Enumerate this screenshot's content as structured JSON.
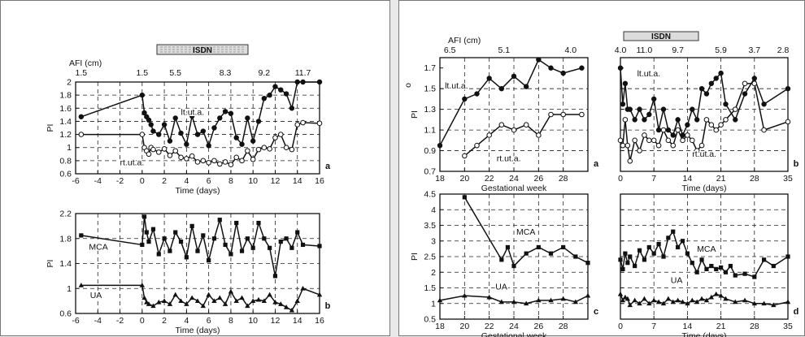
{
  "left": {
    "isdn": "ISDN",
    "afi_label": "AFI (cm)",
    "afi_ticks": [
      {
        "t": -5.5,
        "label": "1.5"
      },
      {
        "t": 0,
        "label": "1.5"
      },
      {
        "t": 3,
        "label": "5.5"
      },
      {
        "t": 7.5,
        "label": "8.3"
      },
      {
        "t": 11,
        "label": "9.2"
      },
      {
        "t": 14.5,
        "label": "11.7"
      }
    ]
  },
  "right": {
    "isdn": "ISDN",
    "afi_label": "AFI (cm)",
    "afi_ticks_left": [
      {
        "t": 18.8,
        "label": "6.5"
      },
      {
        "t": 23.2,
        "label": "5.1"
      },
      {
        "t": 28.6,
        "label": "4.0"
      }
    ],
    "afi_ticks_right": [
      {
        "t": 0,
        "label": "4.0"
      },
      {
        "t": 5,
        "label": "11.0"
      },
      {
        "t": 12,
        "label": "9.7"
      },
      {
        "t": 21,
        "label": "5.9"
      },
      {
        "t": 28,
        "label": "3.7"
      },
      {
        "t": 34,
        "label": "2.8"
      }
    ],
    "extra_axis_label": "o"
  },
  "chart_data": [
    {
      "id": "left-a",
      "type": "line",
      "panel_letter": "a",
      "xlabel": "Time (days)",
      "ylabel": "PI",
      "xlim": [
        -6,
        16
      ],
      "ylim": [
        0.6,
        2.0
      ],
      "xticks": [
        -6,
        -4,
        -2,
        0,
        2,
        4,
        6,
        8,
        10,
        12,
        14,
        16
      ],
      "yticks": [
        0.6,
        0.8,
        1,
        1.2,
        1.4,
        1.6,
        1.8,
        2
      ],
      "ytick_labels": [
        "0.6",
        "0.8",
        "1",
        "1.2",
        "1.4",
        "1.6",
        "1.8",
        "2"
      ],
      "grid": true,
      "annotations": [
        {
          "text": "lt.ut.a.",
          "x": 3.5,
          "y": 1.5
        },
        {
          "text": "rt.ut.a.",
          "x": -2,
          "y": 0.73
        }
      ],
      "series": [
        {
          "marker": "filled",
          "x": [
            -5.5,
            0,
            0.2,
            0.4,
            0.6,
            0.8,
            1,
            1.5,
            2,
            2.5,
            3,
            3.5,
            4,
            4.5,
            5,
            5.5,
            6,
            6.5,
            7,
            7.5,
            8,
            8.5,
            9,
            9.5,
            10,
            10.5,
            11,
            11.5,
            12,
            12.5,
            13,
            13.5,
            14,
            14.5,
            16
          ],
          "y": [
            1.47,
            1.8,
            1.53,
            1.47,
            1.42,
            1.35,
            1.25,
            1.2,
            1.35,
            1.1,
            1.45,
            1.22,
            1.05,
            1.48,
            1.2,
            1.25,
            1.03,
            1.3,
            1.45,
            1.55,
            1.52,
            1.15,
            1.05,
            1.45,
            1.1,
            1.4,
            1.75,
            1.8,
            1.93,
            1.88,
            1.82,
            1.6,
            2.0,
            2.0,
            2.0
          ]
        },
        {
          "marker": "open",
          "x": [
            -5.5,
            0,
            0.2,
            0.4,
            0.6,
            0.8,
            1,
            1.5,
            2,
            2.5,
            3,
            3.5,
            4,
            4.5,
            5,
            5.5,
            6,
            6.5,
            7,
            7.5,
            8,
            8.5,
            9,
            9.5,
            10,
            10.5,
            11,
            11.5,
            12,
            12.5,
            13,
            13.5,
            14,
            14.5,
            16
          ],
          "y": [
            1.2,
            1.2,
            1.0,
            0.95,
            0.9,
            1.0,
            0.97,
            0.93,
            0.98,
            0.88,
            0.95,
            0.85,
            0.83,
            0.87,
            0.78,
            0.8,
            0.77,
            0.8,
            0.75,
            0.78,
            0.74,
            0.85,
            0.8,
            0.95,
            0.82,
            0.97,
            1.0,
            0.98,
            1.15,
            1.2,
            1.0,
            0.97,
            1.35,
            1.38,
            1.37
          ]
        }
      ]
    },
    {
      "id": "left-b",
      "type": "line",
      "panel_letter": "b",
      "xlabel": "Time (days)",
      "ylabel": "PI",
      "xlim": [
        -6,
        16
      ],
      "ylim": [
        0.6,
        2.2
      ],
      "xticks": [
        -6,
        -4,
        -2,
        0,
        2,
        4,
        6,
        8,
        10,
        12,
        14,
        16
      ],
      "yticks": [
        0.6,
        1,
        1.4,
        1.8,
        2.2
      ],
      "ytick_labels": [
        "0.6",
        "1",
        "1.4",
        "1.8",
        "2.2"
      ],
      "grid": true,
      "annotations": [
        {
          "text": "MCA",
          "x": -4.8,
          "y": 1.62
        },
        {
          "text": "UA",
          "x": -4.7,
          "y": 0.85
        }
      ],
      "series": [
        {
          "name": "MCA",
          "marker": "square",
          "x": [
            -5.5,
            0,
            0.2,
            0.4,
            0.6,
            1,
            1.5,
            2,
            2.5,
            3,
            3.5,
            4,
            4.5,
            5,
            5.5,
            6,
            6.5,
            7,
            7.5,
            8,
            8.5,
            9,
            9.5,
            10,
            10.5,
            11,
            11.5,
            12,
            12.5,
            13,
            13.5,
            14,
            14.5,
            16
          ],
          "y": [
            1.85,
            1.7,
            2.15,
            1.9,
            1.75,
            1.95,
            1.55,
            1.8,
            1.6,
            1.9,
            1.75,
            1.5,
            2.0,
            1.6,
            1.85,
            1.45,
            1.8,
            2.1,
            1.7,
            1.55,
            2.05,
            1.6,
            1.8,
            1.65,
            2.05,
            1.8,
            1.65,
            1.2,
            1.75,
            1.8,
            1.65,
            1.9,
            1.7,
            1.68
          ]
        },
        {
          "name": "UA",
          "marker": "triangle",
          "x": [
            -5.5,
            0,
            0.2,
            0.4,
            0.6,
            1,
            1.5,
            2,
            2.5,
            3,
            3.5,
            4,
            4.5,
            5,
            5.5,
            6,
            6.5,
            7,
            7.5,
            8,
            8.5,
            9,
            9.5,
            10,
            10.5,
            11,
            11.5,
            12,
            12.5,
            13,
            13.5,
            14,
            14.5,
            16
          ],
          "y": [
            1.05,
            1.05,
            0.85,
            0.78,
            0.75,
            0.72,
            0.78,
            0.8,
            0.75,
            0.9,
            0.8,
            0.75,
            0.85,
            0.8,
            0.72,
            0.9,
            0.8,
            0.85,
            0.75,
            0.95,
            0.8,
            0.85,
            0.72,
            0.8,
            0.82,
            0.8,
            0.9,
            0.78,
            0.75,
            0.7,
            0.65,
            0.8,
            1.0,
            0.9
          ]
        }
      ]
    },
    {
      "id": "right-a",
      "type": "line",
      "panel_letter": "a",
      "xlabel": "Gestational week",
      "ylabel": "PI",
      "xlim": [
        18,
        30
      ],
      "ylim": [
        0.7,
        1.8
      ],
      "xticks": [
        18,
        20,
        22,
        24,
        26,
        28
      ],
      "xtick_labels": [
        "18",
        "20",
        "22",
        "24",
        "26",
        "28"
      ],
      "yticks": [
        0.7,
        0.9,
        1.1,
        1.3,
        1.5,
        1.7
      ],
      "ytick_labels": [
        "0.7",
        "0.9",
        "1.1",
        "1.3",
        "1.5",
        "1.7"
      ],
      "grid": true,
      "annotations": [
        {
          "text": "lt.ut.a.",
          "x": 18.4,
          "y": 1.5
        },
        {
          "text": "rt.ut.a.",
          "x": 22.6,
          "y": 0.8
        }
      ],
      "series": [
        {
          "name": "lt.ut.a.",
          "marker": "filled",
          "x": [
            18,
            20,
            21,
            22,
            23,
            24,
            25,
            26,
            27,
            28,
            29.5
          ],
          "y": [
            0.95,
            1.4,
            1.45,
            1.6,
            1.5,
            1.62,
            1.52,
            1.78,
            1.7,
            1.65,
            1.7
          ]
        },
        {
          "name": "rt.ut.a.",
          "marker": "open",
          "x": [
            20,
            21,
            22,
            23,
            24,
            25,
            26,
            27,
            28,
            29.5
          ],
          "y": [
            0.85,
            0.95,
            1.05,
            1.15,
            1.1,
            1.15,
            1.05,
            1.25,
            1.25,
            1.25
          ]
        }
      ]
    },
    {
      "id": "right-b",
      "type": "line",
      "panel_letter": "b",
      "xlabel": "Time (days)",
      "ylabel": "",
      "xlim": [
        0,
        35
      ],
      "ylim": [
        0.7,
        1.8
      ],
      "xticks": [
        0,
        7,
        14,
        21,
        28,
        35
      ],
      "xtick_labels": [
        "0",
        "7",
        "14",
        "21",
        "28",
        "35"
      ],
      "yticks": [
        0.7,
        0.9,
        1.1,
        1.3,
        1.5,
        1.7
      ],
      "grid": true,
      "annotations": [
        {
          "text": "lt.ut.a.",
          "x": 3.5,
          "y": 1.62
        },
        {
          "text": "rt.ut.a.",
          "x": 15,
          "y": 0.84
        }
      ],
      "series": [
        {
          "name": "lt.ut.a.",
          "marker": "filled",
          "x": [
            0,
            0.5,
            1,
            1.5,
            2,
            3,
            4,
            5,
            6,
            7,
            8,
            9,
            10,
            11,
            12,
            13,
            14,
            15,
            16,
            17,
            18,
            19,
            20,
            21,
            22,
            24,
            26,
            28,
            30,
            35
          ],
          "y": [
            1.7,
            1.35,
            1.55,
            1.3,
            1.3,
            1.2,
            1.3,
            1.2,
            1.25,
            1.4,
            1.1,
            1.3,
            1.1,
            1.05,
            1.2,
            1.05,
            1.15,
            1.3,
            1.2,
            1.5,
            1.45,
            1.55,
            1.6,
            1.65,
            1.35,
            1.2,
            1.45,
            1.6,
            1.35,
            1.5
          ]
        },
        {
          "name": "rt.ut.a.",
          "marker": "open",
          "x": [
            0,
            0.5,
            1,
            1.5,
            2,
            3,
            4,
            5,
            6,
            7,
            8,
            9,
            10,
            11,
            12,
            13,
            14,
            15,
            16,
            17,
            18,
            19,
            20,
            21,
            22,
            24,
            26,
            28,
            30,
            35
          ],
          "y": [
            1.0,
            0.95,
            1.2,
            0.95,
            0.8,
            1.0,
            0.9,
            1.05,
            1.0,
            1.0,
            0.95,
            1.1,
            1.0,
            0.95,
            1.1,
            1.0,
            1.05,
            1.0,
            0.9,
            0.95,
            1.2,
            1.15,
            1.1,
            1.15,
            1.2,
            1.3,
            1.55,
            1.55,
            1.1,
            1.18
          ]
        }
      ]
    },
    {
      "id": "right-c",
      "type": "line",
      "panel_letter": "c",
      "xlabel": "Gestational week",
      "ylabel": "PI",
      "xlim": [
        18,
        30
      ],
      "ylim": [
        0.5,
        4.5
      ],
      "xticks": [
        18,
        20,
        22,
        24,
        26,
        28
      ],
      "xtick_labels": [
        "18",
        "20",
        "22",
        "24",
        "26",
        "28"
      ],
      "yticks": [
        0.5,
        1,
        1.5,
        2,
        2.5,
        3,
        3.5,
        4,
        4.5
      ],
      "ytick_labels": [
        "0.5",
        "1",
        "1.5",
        "2",
        "2.5",
        "3",
        "3.5",
        "4",
        "4.5"
      ],
      "grid": true,
      "annotations": [
        {
          "text": "MCA",
          "x": 24.2,
          "y": 3.2
        },
        {
          "text": "UA",
          "x": 22.5,
          "y": 1.45
        }
      ],
      "series": [
        {
          "name": "MCA",
          "marker": "square",
          "x": [
            20,
            23,
            23.5,
            24,
            25,
            26,
            27,
            28,
            29,
            30
          ],
          "y": [
            4.4,
            2.4,
            2.8,
            2.2,
            2.6,
            2.8,
            2.6,
            2.8,
            2.5,
            2.3
          ]
        },
        {
          "name": "UA",
          "marker": "triangle",
          "x": [
            18,
            20,
            22,
            23,
            24,
            25,
            26,
            27,
            28,
            29,
            30
          ],
          "y": [
            1.1,
            1.25,
            1.2,
            1.05,
            1.05,
            1.0,
            1.1,
            1.1,
            1.15,
            1.05,
            1.25
          ]
        }
      ]
    },
    {
      "id": "right-d",
      "type": "line",
      "panel_letter": "d",
      "xlabel": "Time (days)",
      "ylabel": "",
      "xlim": [
        0,
        35
      ],
      "ylim": [
        0.5,
        4.5
      ],
      "xticks": [
        0,
        7,
        14,
        21,
        28,
        35
      ],
      "xtick_labels": [
        "0",
        "7",
        "14",
        "21",
        "28",
        "35"
      ],
      "yticks": [
        0.5,
        1,
        1.5,
        2,
        2.5,
        3,
        3.5,
        4,
        4.5
      ],
      "grid": true,
      "annotations": [
        {
          "text": "MCA",
          "x": 16,
          "y": 2.65
        },
        {
          "text": "UA",
          "x": 10.5,
          "y": 1.65
        }
      ],
      "series": [
        {
          "name": "MCA",
          "marker": "square",
          "x": [
            0,
            0.5,
            1,
            1.5,
            2,
            3,
            4,
            5,
            6,
            7,
            8,
            9,
            10,
            11,
            12,
            13,
            14,
            15,
            16,
            17,
            18,
            19,
            20,
            21,
            22,
            23,
            24,
            26,
            28,
            30,
            32,
            35
          ],
          "y": [
            2.4,
            2.1,
            2.6,
            2.3,
            2.5,
            2.2,
            2.7,
            2.4,
            2.8,
            2.6,
            2.9,
            2.5,
            3.1,
            3.3,
            2.8,
            3.0,
            2.6,
            2.3,
            2.0,
            2.4,
            2.1,
            2.2,
            2.1,
            2.15,
            2.0,
            2.2,
            1.9,
            1.95,
            1.85,
            2.4,
            2.2,
            2.5
          ]
        },
        {
          "name": "UA",
          "marker": "triangle",
          "x": [
            0,
            0.5,
            1,
            1.5,
            2,
            3,
            4,
            5,
            6,
            7,
            8,
            9,
            10,
            11,
            12,
            13,
            14,
            15,
            16,
            17,
            18,
            19,
            20,
            21,
            22,
            24,
            26,
            28,
            30,
            32,
            35
          ],
          "y": [
            1.3,
            1.1,
            1.2,
            1.15,
            0.95,
            1.1,
            1.0,
            1.15,
            1.0,
            1.1,
            1.05,
            1.0,
            1.15,
            1.05,
            1.1,
            1.05,
            1.0,
            1.1,
            1.05,
            1.15,
            1.1,
            1.2,
            1.3,
            1.25,
            1.15,
            1.05,
            1.1,
            1.0,
            1.0,
            0.95,
            1.05
          ]
        }
      ]
    }
  ]
}
